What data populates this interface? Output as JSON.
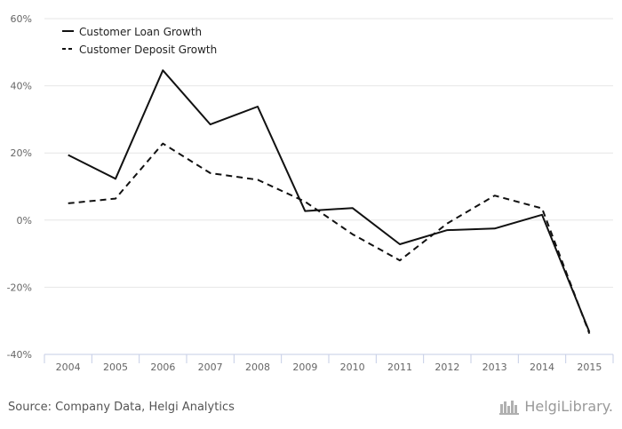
{
  "chart_data": {
    "type": "line",
    "categories": [
      "2004",
      "2005",
      "2006",
      "2007",
      "2008",
      "2009",
      "2010",
      "2011",
      "2012",
      "2013",
      "2014",
      "2015"
    ],
    "series": [
      {
        "name": "Customer Loan Growth",
        "style": "solid",
        "color": "#111111",
        "values": [
          19.4,
          12.3,
          44.6,
          28.5,
          33.8,
          2.7,
          3.6,
          -7.2,
          -3.0,
          -2.5,
          1.6,
          -33.3
        ]
      },
      {
        "name": "Customer Deposit Growth",
        "style": "dashed",
        "color": "#111111",
        "values": [
          5.0,
          6.4,
          22.8,
          14.0,
          12.0,
          5.5,
          -4.2,
          -12.0,
          -1.0,
          7.3,
          3.5,
          -33.8
        ]
      }
    ],
    "y_ticks": [
      "60%",
      "40%",
      "20%",
      "0%",
      "-20%",
      "-40%"
    ],
    "y_tick_values": [
      60,
      40,
      20,
      0,
      -20,
      -40
    ],
    "ylim": [
      -40,
      60
    ],
    "grid": true,
    "legend_position": "top-left",
    "xlabel": "",
    "ylabel": ""
  },
  "footer": {
    "source": "Source: Company Data, Helgi Analytics",
    "logo_text": "HelgiLibrary."
  }
}
